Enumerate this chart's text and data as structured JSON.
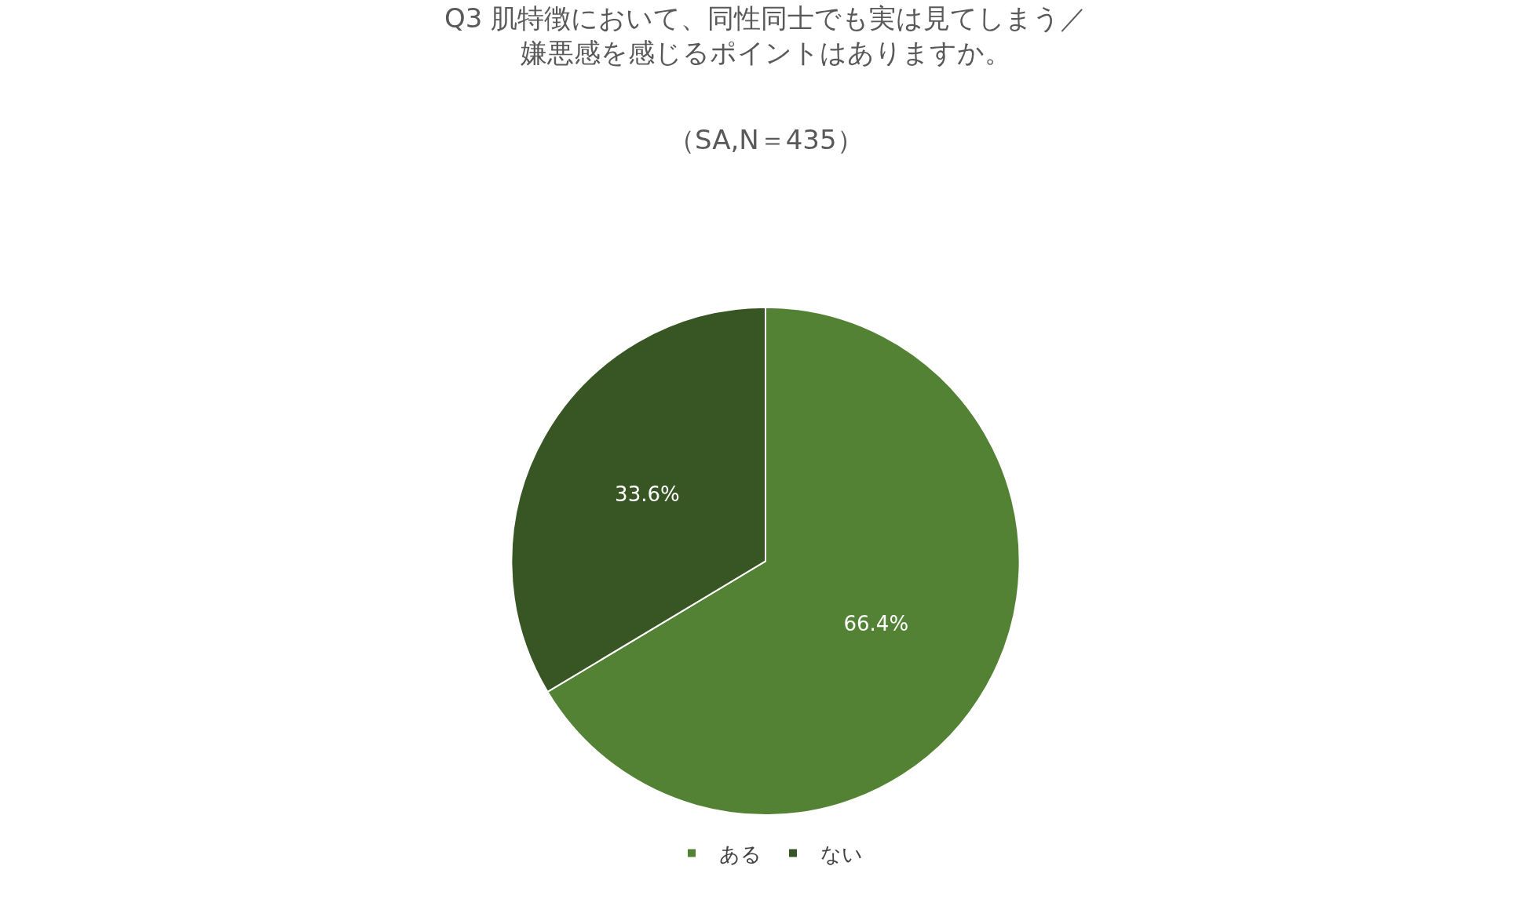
{
  "chart_data": {
    "type": "pie",
    "title": "Q3 肌特徴において、同性同士でも実は見てしまう／嫌悪感を感じるポイントはありますか。",
    "subtitle": "（SA,N＝435）",
    "categories": [
      "ある",
      "ない"
    ],
    "values": [
      66.4,
      33.6
    ],
    "colors": [
      "#548235",
      "#375623"
    ],
    "value_labels": [
      "66.4%",
      "33.6%"
    ],
    "legend": "bottom"
  }
}
